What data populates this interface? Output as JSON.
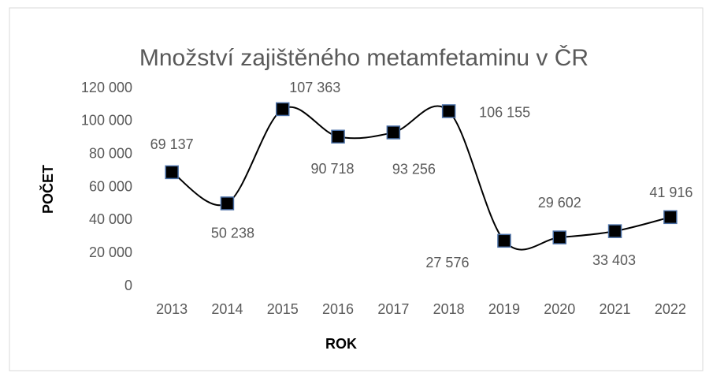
{
  "chart_data": {
    "type": "line",
    "title": "Množství zajištěného metamfetaminu v ČR",
    "x_label": "ROK",
    "y_label": "POČET",
    "categories": [
      "2013",
      "2014",
      "2015",
      "2016",
      "2017",
      "2018",
      "2019",
      "2020",
      "2021",
      "2022"
    ],
    "values": [
      69137,
      50238,
      107363,
      90718,
      93256,
      106155,
      27576,
      29602,
      33403,
      41916
    ],
    "value_labels": [
      "69 137",
      "50 238",
      "107 363",
      "90 718",
      "93 256",
      "106 155",
      "27 576",
      "29 602",
      "33 403",
      "41 916"
    ],
    "color": "#000000",
    "marker_color": "#000000",
    "marker_edge": "#4a6fa5",
    "ylim": [
      0,
      120000
    ],
    "yticks": [
      0,
      {
        "value": 20000,
        "label": "20 000"
      },
      {
        "value": 40000,
        "label": "40 000"
      },
      {
        "value": 60000,
        "label": "60 000"
      },
      {
        "value": 80000,
        "label": "80 000"
      },
      {
        "value": 100000,
        "label": "100 000"
      },
      {
        "value": 120000,
        "label": "120 000"
      }
    ],
    "grid": false,
    "smooth": true
  }
}
